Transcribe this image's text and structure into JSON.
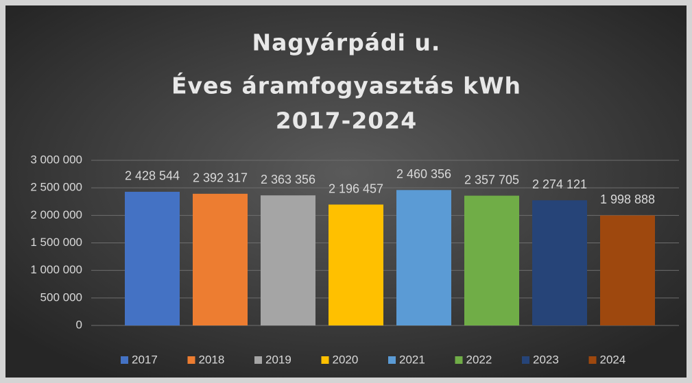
{
  "chart_data": {
    "type": "bar",
    "title": [
      "Nagyárpádi u.",
      "Éves áramfogyasztás kWh",
      "2017-2024"
    ],
    "series": [
      {
        "name": "2017",
        "color": "#4472c4",
        "values": [
          2428544
        ],
        "value_labels": [
          "2 428 544"
        ]
      },
      {
        "name": "2018",
        "color": "#ed7d31",
        "values": [
          2392317
        ],
        "value_labels": [
          "2 392 317"
        ]
      },
      {
        "name": "2019",
        "color": "#a5a5a5",
        "values": [
          2363356
        ],
        "value_labels": [
          "2 363 356"
        ]
      },
      {
        "name": "2020",
        "color": "#ffc000",
        "values": [
          2196457
        ],
        "value_labels": [
          "2 196 457"
        ]
      },
      {
        "name": "2021",
        "color": "#5b9bd5",
        "values": [
          2460356
        ],
        "value_labels": [
          "2 460 356"
        ]
      },
      {
        "name": "2022",
        "color": "#70ad47",
        "values": [
          2357705
        ],
        "value_labels": [
          "2 357 705"
        ]
      },
      {
        "name": "2023",
        "color": "#264478",
        "values": [
          2274121
        ],
        "value_labels": [
          "2 274 121"
        ]
      },
      {
        "name": "2024",
        "color": "#9e480e",
        "values": [
          1998888
        ],
        "value_labels": [
          "1 998 888"
        ]
      }
    ],
    "ylim": [
      0,
      3000000
    ],
    "yticks": [
      0,
      {
        "value": 500000,
        "label": "500 000"
      },
      {
        "value": 1000000,
        "label": "1 000 000"
      },
      {
        "value": 1500000,
        "label": "1 500 000"
      },
      {
        "value": 2000000,
        "label": "2 000 000"
      },
      {
        "value": 2500000,
        "label": "2 500 000"
      },
      {
        "value": 3000000,
        "label": "3 000 000"
      }
    ],
    "grid": true,
    "legend": "bottom"
  }
}
